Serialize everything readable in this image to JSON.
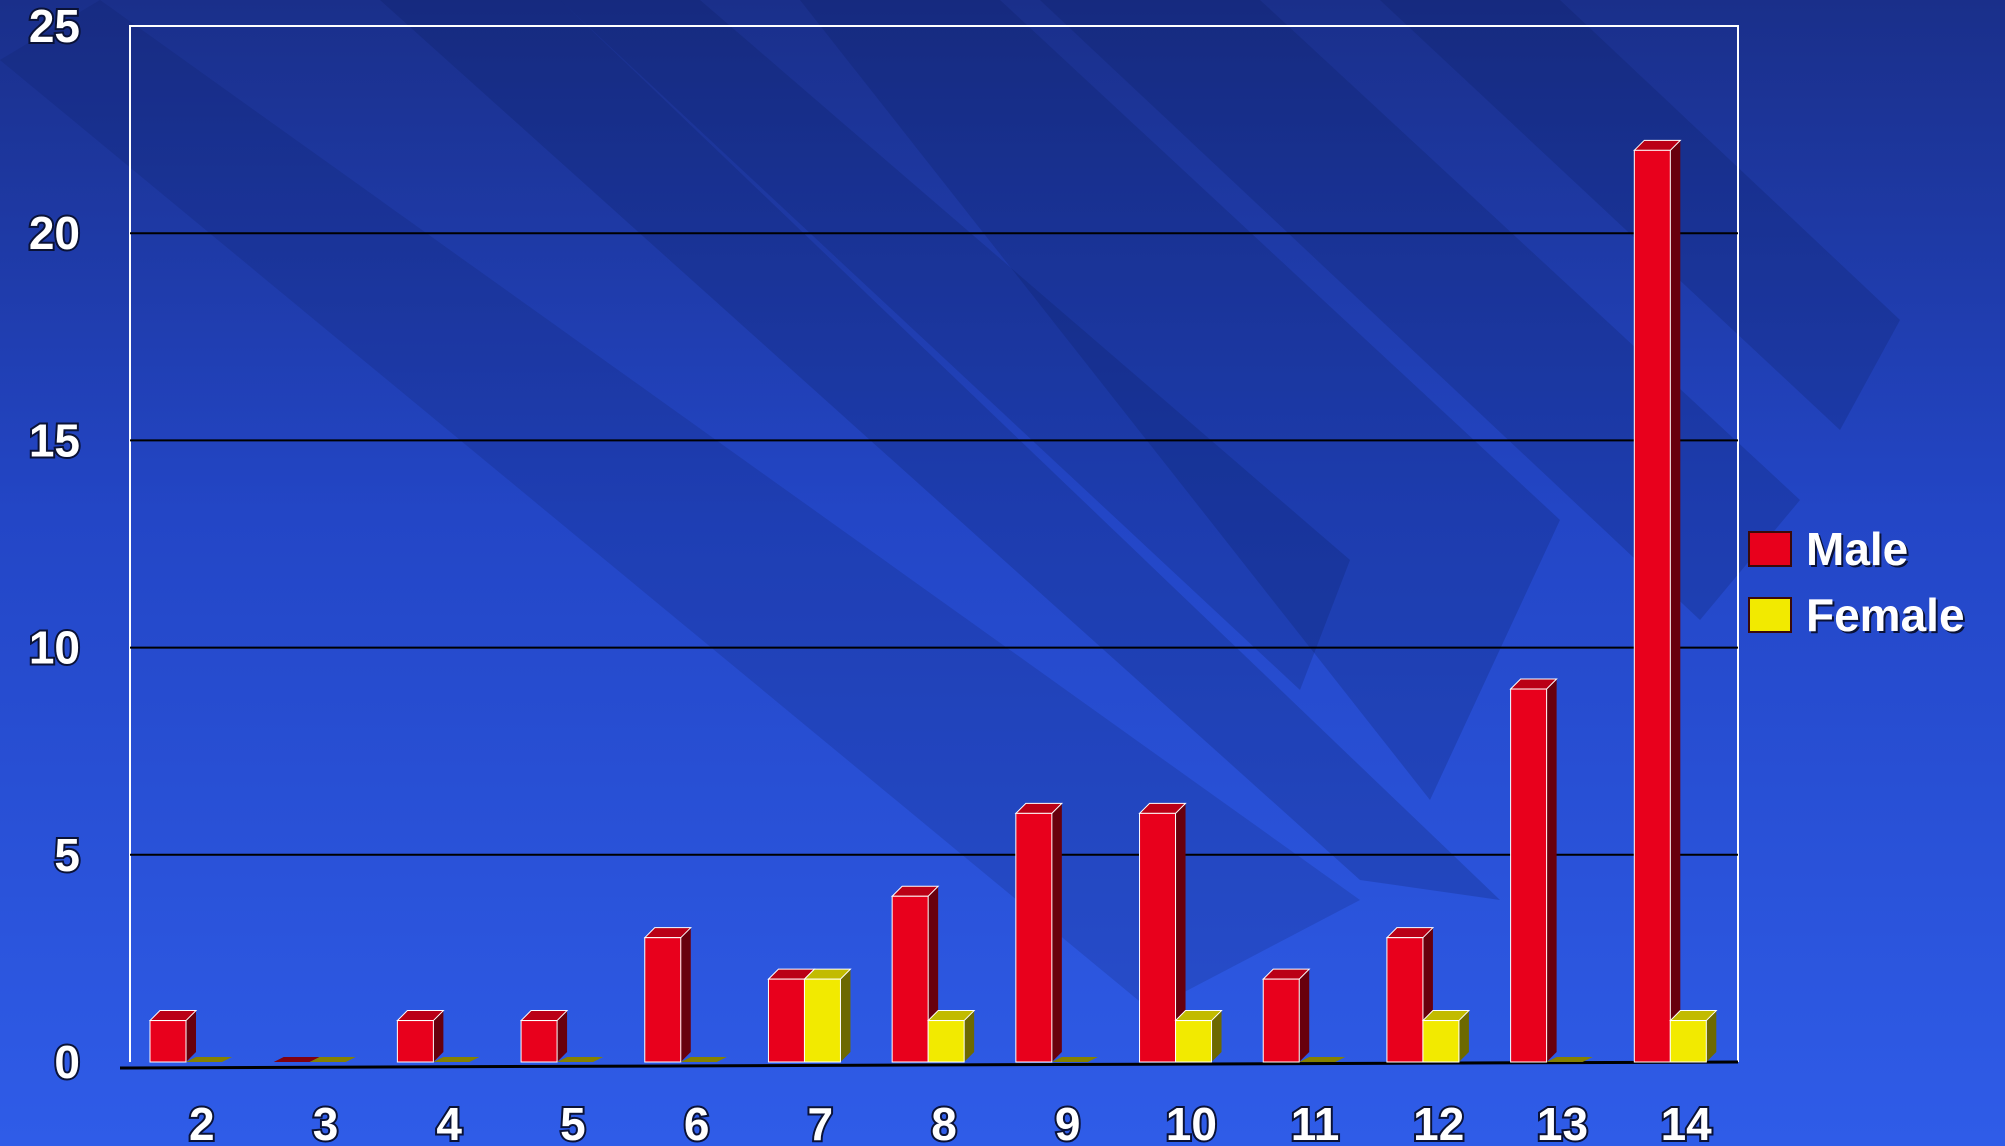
{
  "chart_data": {
    "type": "bar",
    "categories": [
      "2",
      "3",
      "4",
      "5",
      "6",
      "7",
      "8",
      "9",
      "10",
      "11",
      "12",
      "13",
      "14"
    ],
    "series": [
      {
        "name": "Male",
        "color": "#e8001c",
        "values": [
          1,
          0,
          1,
          1,
          3,
          2,
          4,
          6,
          6,
          2,
          3,
          9,
          22
        ]
      },
      {
        "name": "Female",
        "color": "#f2ea00",
        "values": [
          0,
          0,
          0,
          0,
          0,
          2,
          1,
          0,
          1,
          0,
          1,
          0,
          1
        ]
      }
    ],
    "ylim": [
      0,
      25
    ],
    "yticks": [
      0,
      5,
      10,
      15,
      20,
      25
    ],
    "grid": true,
    "legend_position": "right",
    "title": "",
    "xlabel": "",
    "ylabel": ""
  }
}
